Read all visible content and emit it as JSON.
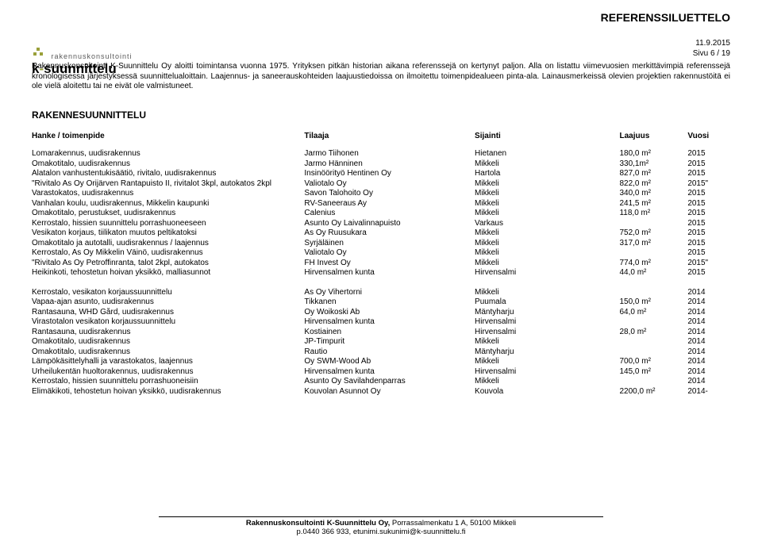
{
  "header": {
    "title": "REFERENSSILUETTELO",
    "date": "11.9.2015",
    "page": "Sivu 6 / 19",
    "logo_top": "rakennuskonsultointi",
    "logo_bottom_prefix": "k",
    "logo_bottom_rest": "suunnittelu"
  },
  "intro": "Rakennuskonsultointi K-Suunnittelu Oy aloitti toimintansa vuonna 1975. Yrityksen pitkän historian aikana referenssejä on kertynyt paljon. Alla on listattu viimevuosien merkittävimpiä referenssejä kronologisessa järjestyksessä suunnittelualoittain. Laajennus- ja saneerauskohteiden laajuustiedoissa on ilmoitettu toimenpidealueen pinta-ala. Lainausmerkeissä olevien projektien rakennustöitä ei ole vielä aloitettu tai ne eivät ole valmistuneet.",
  "section_title": "RAKENNESUUNNITTELU",
  "columns": {
    "toimenpide": "Hanke / toimenpide",
    "tilaaja": "Tilaaja",
    "sijainti": "Sijainti",
    "laajuus": "Laajuus",
    "vuosi": "Vuosi"
  },
  "groups": [
    {
      "rows": [
        {
          "toimenpide": "Lomarakennus, uudisrakennus",
          "tilaaja": "Jarmo Tiihonen",
          "sijainti": "Hietanen",
          "laajuus": "180,0 m²",
          "vuosi": "2015"
        },
        {
          "toimenpide": "Omakotitalo, uudisrakennus",
          "tilaaja": "Jarmo Hänninen",
          "sijainti": "Mikkeli",
          "laajuus": "330,1m²",
          "vuosi": "2015"
        },
        {
          "toimenpide": "Alatalon vanhustentukisäätiö, rivitalo, uudisrakennus",
          "tilaaja": "Insinöörityö Hentinen Oy",
          "sijainti": "Hartola",
          "laajuus": "827,0 m²",
          "vuosi": "2015"
        },
        {
          "toimenpide": "\"Rivitalo As Oy Orijärven Rantapuisto II, rivitalot 3kpl, autokatos 2kpl",
          "tilaaja": "Valiotalo Oy",
          "sijainti": "Mikkeli",
          "laajuus": "822,0 m²",
          "vuosi": "2015\""
        },
        {
          "toimenpide": "Varastokatos, uudisrakennus",
          "tilaaja": "Savon Talohoito Oy",
          "sijainti": "Mikkeli",
          "laajuus": "340,0 m²",
          "vuosi": "2015"
        },
        {
          "toimenpide": "Vanhalan koulu, uudisrakennus, Mikkelin kaupunki",
          "tilaaja": "RV-Saneeraus Ay",
          "sijainti": "Mikkeli",
          "laajuus": "241,5 m²",
          "vuosi": "2015"
        },
        {
          "toimenpide": "Omakotitalo, perustukset, uudisrakennus",
          "tilaaja": "Calenius",
          "sijainti": "Mikkeli",
          "laajuus": "118,0 m²",
          "vuosi": "2015"
        },
        {
          "toimenpide": "Kerrostalo, hissien suunnittelu porrashuoneeseen",
          "tilaaja": "Asunto Oy Laivalinnapuisto",
          "sijainti": "Varkaus",
          "laajuus": "",
          "vuosi": "2015"
        },
        {
          "toimenpide": "Vesikaton korjaus, tiilikaton muutos peltikatoksi",
          "tilaaja": "As Oy Ruusukara",
          "sijainti": "Mikkeli",
          "laajuus": "752,0 m²",
          "vuosi": "2015"
        },
        {
          "toimenpide": "Omakotitalo ja autotalli, uudisrakennus / laajennus",
          "tilaaja": "Syrjäläinen",
          "sijainti": "Mikkeli",
          "laajuus": "317,0 m²",
          "vuosi": "2015"
        },
        {
          "toimenpide": "Kerrostalo, As Oy Mikkelin Väinö, uudisrakennus",
          "tilaaja": "Valiotalo Oy",
          "sijainti": "Mikkeli",
          "laajuus": "",
          "vuosi": "2015"
        },
        {
          "toimenpide": "\"Rivitalo As Oy Petroffinranta, talot 2kpl, autokatos",
          "tilaaja": "FH Invest Oy",
          "sijainti": "Mikkeli",
          "laajuus": "774,0 m²",
          "vuosi": "2015\""
        },
        {
          "toimenpide": "Heikinkoti, tehostetun hoivan yksikkö, malliasunnot",
          "tilaaja": "Hirvensalmen kunta",
          "sijainti": "Hirvensalmi",
          "laajuus": "44,0 m²",
          "vuosi": "2015"
        }
      ]
    },
    {
      "rows": [
        {
          "toimenpide": "Kerrostalo, vesikaton korjaussuunnittelu",
          "tilaaja": "As Oy Vihertorni",
          "sijainti": "Mikkeli",
          "laajuus": "",
          "vuosi": "2014"
        },
        {
          "toimenpide": "Vapaa-ajan asunto, uudisrakennus",
          "tilaaja": "Tikkanen",
          "sijainti": "Puumala",
          "laajuus": "150,0 m²",
          "vuosi": "2014"
        },
        {
          "toimenpide": "Rantasauna, WHD Gård, uudisrakennus",
          "tilaaja": "Oy Woikoski Ab",
          "sijainti": "Mäntyharju",
          "laajuus": "64,0 m²",
          "vuosi": "2014"
        },
        {
          "toimenpide": "Virastotalon vesikaton korjaussuunnittelu",
          "tilaaja": "Hirvensalmen kunta",
          "sijainti": "Hirvensalmi",
          "laajuus": "",
          "vuosi": "2014"
        },
        {
          "toimenpide": "Rantasauna, uudisrakennus",
          "tilaaja": "Kostiainen",
          "sijainti": "Hirvensalmi",
          "laajuus": "28,0 m²",
          "vuosi": "2014"
        },
        {
          "toimenpide": "Omakotitalo, uudisrakennus",
          "tilaaja": "JP-Timpurit",
          "sijainti": "Mikkeli",
          "laajuus": "",
          "vuosi": "2014"
        },
        {
          "toimenpide": "Omakotitalo, uudisrakennus",
          "tilaaja": "Rautio",
          "sijainti": "Mäntyharju",
          "laajuus": "",
          "vuosi": "2014"
        },
        {
          "toimenpide": "Lämpökäsittelyhalli ja varastokatos, laajennus",
          "tilaaja": "Oy SWM-Wood Ab",
          "sijainti": "Mikkeli",
          "laajuus": "700,0 m²",
          "vuosi": "2014"
        },
        {
          "toimenpide": "Urheilukentän huoltorakennus, uudisrakennus",
          "tilaaja": "Hirvensalmen kunta",
          "sijainti": "Hirvensalmi",
          "laajuus": "145,0 m²",
          "vuosi": "2014"
        },
        {
          "toimenpide": "Kerrostalo, hissien suunnittelu porrashuoneisiin",
          "tilaaja": "Asunto Oy Savilahdenparras",
          "sijainti": "Mikkeli",
          "laajuus": "",
          "vuosi": "2014"
        },
        {
          "toimenpide": "Elimäkikoti, tehostetun hoivan yksikkö, uudisrakennus",
          "tilaaja": "Kouvolan Asunnot Oy",
          "sijainti": "Kouvola",
          "laajuus": "2200,0 m²",
          "vuosi": "2014-"
        }
      ]
    }
  ],
  "footer": {
    "company": "Rakennuskonsultointi K-Suunnittelu Oy,",
    "address": "Porrassalmenkatu 1 A, 50100 Mikkeli",
    "contact": "p.0440 366 933, etunimi.sukunimi@k-suunnittelu.fi"
  }
}
